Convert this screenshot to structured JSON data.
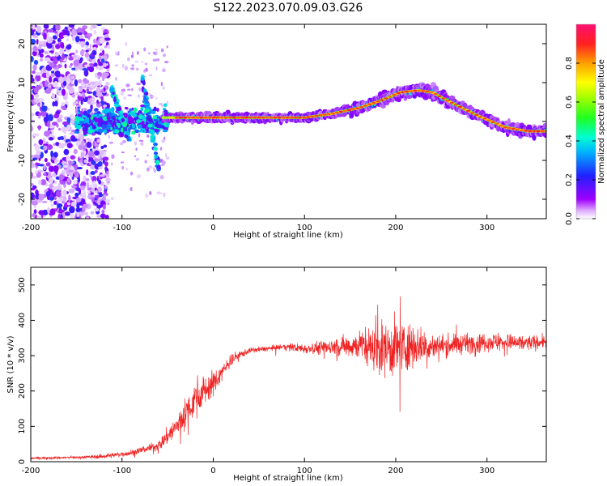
{
  "figure_title": "S122.2023.070.09.03.G26",
  "chart_data": [
    {
      "type": "heatmap",
      "xlabel": "Height of straight line (km)",
      "ylabel": "Frequency (Hz)",
      "xlim": [
        -200,
        365
      ],
      "ylim": [
        -25,
        25
      ],
      "xticks": [
        "-200",
        "-100",
        "0",
        "100",
        "200",
        "300"
      ],
      "yticks": [
        "-20",
        "-10",
        "0",
        "10",
        "20"
      ],
      "colorbar": {
        "label": "Normalized spectral amplitude",
        "range": [
          0,
          1
        ],
        "ticks": [
          "0.0",
          "0.2",
          "0.4",
          "0.6",
          "0.8"
        ],
        "colormap": "gist_rainbow reversed (magenta-blue-cyan-green-yellow-red)"
      },
      "ridge": {
        "description": "dominant frequency track",
        "points": [
          [
            -55,
            1
          ],
          [
            -30,
            1
          ],
          [
            0,
            1
          ],
          [
            50,
            1
          ],
          [
            100,
            1
          ],
          [
            130,
            2
          ],
          [
            160,
            3.5
          ],
          [
            185,
            5.5
          ],
          [
            205,
            7.5
          ],
          [
            225,
            8
          ],
          [
            240,
            7.5
          ],
          [
            260,
            5
          ],
          [
            290,
            1.5
          ],
          [
            320,
            -1.5
          ],
          [
            345,
            -2.5
          ],
          [
            365,
            -2.5
          ]
        ]
      },
      "colors": {
        "low": "#c9a8f5",
        "mid": "#00e8ff",
        "high": "#ff1a1a"
      }
    },
    {
      "type": "line",
      "xlabel": "Height of straight line (km)",
      "ylabel": "SNR (10 * v/v)",
      "xlim": [
        -200,
        365
      ],
      "ylim": [
        0,
        550
      ],
      "xticks": [
        "-200",
        "-100",
        "0",
        "100",
        "200",
        "300"
      ],
      "yticks": [
        "0",
        "100",
        "200",
        "300",
        "400",
        "500"
      ],
      "series": [
        {
          "color": "#ee2222",
          "envelope": {
            "x": [
              -200,
              -150,
              -120,
              -90,
              -60,
              -40,
              -20,
              0,
              20,
              40,
              60,
              80,
              100,
              130,
              160,
              180,
              200,
              220,
              240,
              260,
              300,
              340,
              365
            ],
            "mean": [
              10,
              12,
              15,
              25,
              45,
              100,
              180,
              220,
              290,
              315,
              320,
              325,
              320,
              325,
              330,
              320,
              320,
              330,
              325,
              330,
              340,
              335,
              340
            ],
            "amp": [
              6,
              6,
              10,
              15,
              25,
              60,
              90,
              60,
              30,
              12,
              12,
              15,
              25,
              40,
              70,
              110,
              150,
              100,
              60,
              50,
              45,
              40,
              30
            ]
          }
        }
      ]
    }
  ]
}
